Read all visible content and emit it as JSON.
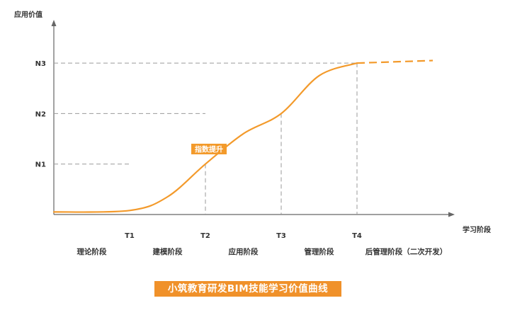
{
  "chart_data": {
    "type": "line",
    "ylabel": "应用价值",
    "xlabel": "学习阶段",
    "x_ticks": [
      "T1",
      "T2",
      "T3",
      "T4"
    ],
    "y_ticks": [
      "N1",
      "N2",
      "N3"
    ],
    "series": [
      {
        "x": [
          0.0,
          1.0,
          1.5,
          2.0,
          2.5,
          3.0,
          3.5,
          4.0,
          5.0
        ],
        "y": [
          0.05,
          0.08,
          0.35,
          1.0,
          1.6,
          2.0,
          2.75,
          3.0,
          3.05
        ],
        "projected_from_x": 4.0
      }
    ],
    "phases": [
      "理论阶段",
      "建模阶段",
      "应用阶段",
      "管理阶段",
      "后管理阶段（二次开发）"
    ],
    "annotation": "指数提升",
    "colors": {
      "curve": "#f39a2b",
      "axis": "#666666",
      "guide": "#9a9a9a"
    }
  },
  "caption": "小筑教育研发BIM技能学习价值曲线"
}
